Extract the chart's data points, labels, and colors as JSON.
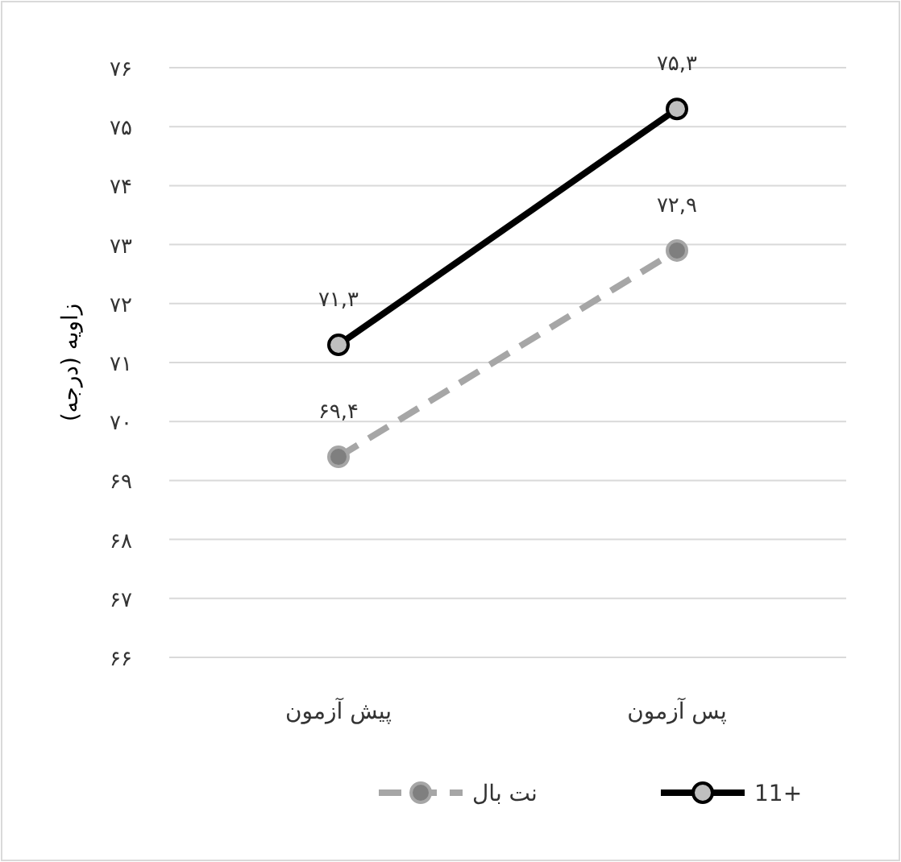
{
  "chart_data": {
    "type": "line",
    "ylabel": "زاویه (درجه)",
    "categories": [
      "پیش آزمون",
      "پس آزمون"
    ],
    "series": [
      {
        "name": "11+",
        "color": "#000000",
        "values": [
          71.3,
          75.3
        ],
        "value_labels": [
          "۷۱,۳",
          "۷۵,۳"
        ],
        "line_style": "solid"
      },
      {
        "name": "نت بال",
        "color": "#a6a6a6",
        "values": [
          69.4,
          72.9
        ],
        "value_labels": [
          "۶۹,۴",
          "۷۲,۹"
        ],
        "line_style": "dashed"
      }
    ],
    "ylim": [
      66,
      76
    ],
    "yticks": [
      {
        "value": 66,
        "label": "۶۶"
      },
      {
        "value": 67,
        "label": "۶۷"
      },
      {
        "value": 68,
        "label": "۶۸"
      },
      {
        "value": 69,
        "label": "۶۹"
      },
      {
        "value": 70,
        "label": "۷۰"
      },
      {
        "value": 71,
        "label": "۷۱"
      },
      {
        "value": 72,
        "label": "۷۲"
      },
      {
        "value": 73,
        "label": "۷۳"
      },
      {
        "value": 74,
        "label": "۷۴"
      },
      {
        "value": 75,
        "label": "۷۵"
      },
      {
        "value": 76,
        "label": "۷۶"
      }
    ],
    "grid": "y",
    "legend": "bottom",
    "marker": "circle"
  }
}
